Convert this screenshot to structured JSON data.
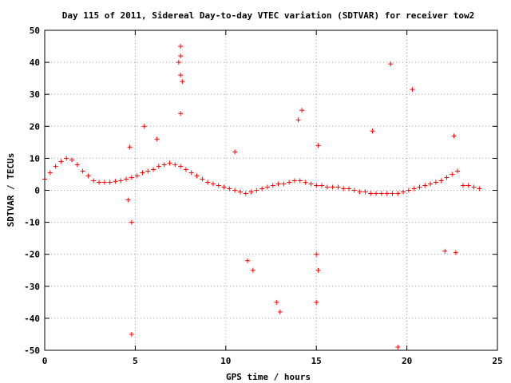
{
  "chart_data": {
    "type": "scatter",
    "title": "Day 115 of 2011, Sidereal Day-to-day VTEC variation (SDTVAR) for receiver tow2",
    "xlabel": "GPS time / hours",
    "ylabel": "SDTVAR / TECUs",
    "xlim": [
      0,
      25
    ],
    "ylim": [
      -50,
      50
    ],
    "xticks": [
      0,
      5,
      10,
      15,
      20,
      25
    ],
    "yticks": [
      -50,
      -40,
      -30,
      -20,
      -10,
      0,
      10,
      20,
      30,
      40,
      50
    ],
    "grid": true,
    "legend": "none",
    "marker": "plus",
    "color": "#ff0000",
    "series": [
      {
        "x": [
          0.0,
          0.3,
          0.6,
          0.9,
          1.2,
          1.5,
          1.8,
          2.1,
          2.4,
          2.7,
          3.0,
          3.3,
          3.6,
          3.9,
          4.2,
          4.5,
          4.8,
          5.1,
          5.4,
          5.7,
          6.0,
          6.3,
          6.6,
          6.9,
          7.2,
          7.5,
          7.8,
          8.1,
          8.4,
          8.7,
          9.0,
          9.3,
          9.6,
          9.9,
          10.2,
          10.5,
          10.8,
          11.1,
          11.4,
          11.7,
          12.0,
          12.3,
          12.6,
          12.9,
          13.2,
          13.5,
          13.8,
          14.1,
          14.4,
          14.7,
          15.0,
          15.3,
          15.6,
          15.9,
          16.2,
          16.5,
          16.8,
          17.1,
          17.4,
          17.7,
          18.0,
          18.3,
          18.6,
          18.9,
          19.2,
          19.5,
          19.8,
          20.1,
          20.4,
          20.7,
          21.0,
          21.3,
          21.6,
          21.9,
          22.2,
          22.5,
          22.8,
          23.1,
          23.4,
          23.7,
          24.0
        ],
        "y": [
          3.5,
          5.5,
          7.5,
          9.0,
          10.0,
          9.5,
          8.0,
          6.0,
          4.5,
          3.0,
          2.5,
          2.5,
          2.5,
          2.8,
          3.0,
          3.5,
          4.0,
          4.5,
          5.5,
          6.0,
          6.5,
          7.5,
          8.0,
          8.5,
          8.0,
          7.5,
          6.5,
          5.5,
          4.5,
          3.5,
          2.5,
          2.0,
          1.5,
          1.0,
          0.5,
          0.0,
          -0.5,
          -1.0,
          -0.5,
          0.0,
          0.5,
          1.0,
          1.5,
          2.0,
          2.0,
          2.5,
          3.0,
          3.0,
          2.5,
          2.0,
          1.5,
          1.5,
          1.0,
          1.0,
          1.0,
          0.5,
          0.5,
          0.0,
          -0.5,
          -0.5,
          -1.0,
          -1.0,
          -1.0,
          -1.0,
          -1.0,
          -1.0,
          -0.5,
          0.0,
          0.5,
          1.0,
          1.5,
          2.0,
          2.5,
          3.0,
          4.0,
          5.0,
          6.0,
          1.5,
          1.5,
          1.0,
          0.5
        ]
      },
      {
        "x": [
          7.5,
          7.5,
          7.5,
          7.6,
          7.4,
          7.5,
          4.8,
          4.8,
          4.6,
          15.0,
          15.1,
          19.1,
          20.3,
          19.5,
          13.0,
          12.8,
          11.5,
          14.2,
          14.0,
          22.7,
          22.1,
          22.6,
          18.1,
          15.1,
          15.0,
          11.2,
          10.5,
          6.2,
          5.5,
          4.7
        ],
        "y": [
          45.0,
          42.0,
          36.0,
          34.0,
          40.0,
          24.0,
          -45.0,
          -10.0,
          -3.0,
          -35.0,
          -25.0,
          39.5,
          31.5,
          -49.0,
          -38.0,
          -35.0,
          -25.0,
          25.0,
          22.0,
          -19.5,
          -19.0,
          17.0,
          18.5,
          14.0,
          -20.0,
          -22.0,
          12.0,
          16.0,
          20.0,
          13.5
        ]
      }
    ]
  }
}
